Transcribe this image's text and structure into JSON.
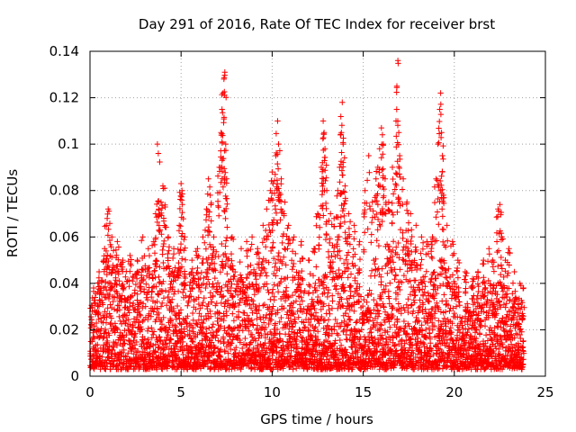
{
  "chart_data": {
    "type": "scatter",
    "title": "Day 291 of 2016, Rate Of TEC Index for receiver brst",
    "xlabel": "GPS time / hours",
    "ylabel": "ROTI / TECUs",
    "xlim": [
      0,
      25
    ],
    "ylim": [
      0,
      0.14
    ],
    "x_ticks": [
      0,
      5,
      10,
      15,
      20,
      25
    ],
    "x_tick_labels": [
      "0",
      "5",
      "10",
      "15",
      "20",
      "25"
    ],
    "y_ticks": [
      0,
      0.02,
      0.04,
      0.06,
      0.08,
      0.1,
      0.12,
      0.14
    ],
    "y_tick_labels": [
      "0",
      "0.02",
      "0.04",
      "0.06",
      "0.08",
      "0.1",
      "0.12",
      "0.14"
    ],
    "grid": true,
    "marker": "+",
    "series": [
      {
        "name": "ROTI",
        "color": "#ff0000",
        "description": "Dense point cloud mostly between 0.005 and 0.04 TECU over 0–23.8 h, with spikes listed below",
        "points": [
          [
            0.2,
            0.038
          ],
          [
            0.5,
            0.045
          ],
          [
            0.8,
            0.055
          ],
          [
            0.9,
            0.065
          ],
          [
            1.0,
            0.072
          ],
          [
            1.2,
            0.06
          ],
          [
            1.5,
            0.058
          ],
          [
            1.8,
            0.05
          ],
          [
            2.2,
            0.052
          ],
          [
            2.6,
            0.05
          ],
          [
            2.9,
            0.06
          ],
          [
            3.2,
            0.055
          ],
          [
            3.5,
            0.058
          ],
          [
            3.7,
            0.1
          ],
          [
            3.75,
            0.096
          ],
          [
            3.6,
            0.07
          ],
          [
            3.9,
            0.075
          ],
          [
            4.0,
            0.082
          ],
          [
            4.1,
            0.081
          ],
          [
            4.3,
            0.06
          ],
          [
            4.6,
            0.055
          ],
          [
            4.9,
            0.065
          ],
          [
            5.0,
            0.083
          ],
          [
            5.05,
            0.08
          ],
          [
            5.2,
            0.06
          ],
          [
            5.6,
            0.05
          ],
          [
            5.9,
            0.055
          ],
          [
            6.2,
            0.06
          ],
          [
            6.4,
            0.072
          ],
          [
            6.5,
            0.085
          ],
          [
            6.6,
            0.078
          ],
          [
            6.8,
            0.06
          ],
          [
            7.1,
            0.09
          ],
          [
            7.2,
            0.105
          ],
          [
            7.25,
            0.115
          ],
          [
            7.3,
            0.122
          ],
          [
            7.35,
            0.128
          ],
          [
            7.4,
            0.131
          ],
          [
            7.45,
            0.1
          ],
          [
            7.5,
            0.085
          ],
          [
            7.8,
            0.06
          ],
          [
            8.3,
            0.055
          ],
          [
            8.6,
            0.058
          ],
          [
            8.9,
            0.06
          ],
          [
            9.2,
            0.055
          ],
          [
            9.5,
            0.065
          ],
          [
            9.7,
            0.072
          ],
          [
            9.9,
            0.08
          ],
          [
            10.0,
            0.088
          ],
          [
            10.05,
            0.083
          ],
          [
            10.2,
            0.095
          ],
          [
            10.3,
            0.11
          ],
          [
            10.35,
            0.1
          ],
          [
            10.5,
            0.085
          ],
          [
            10.7,
            0.075
          ],
          [
            10.9,
            0.065
          ],
          [
            11.2,
            0.06
          ],
          [
            11.6,
            0.058
          ],
          [
            12.0,
            0.05
          ],
          [
            12.3,
            0.055
          ],
          [
            12.5,
            0.07
          ],
          [
            12.7,
            0.09
          ],
          [
            12.8,
            0.11
          ],
          [
            12.85,
            0.105
          ],
          [
            12.9,
            0.098
          ],
          [
            13.0,
            0.08
          ],
          [
            13.2,
            0.07
          ],
          [
            13.4,
            0.068
          ],
          [
            13.6,
            0.08
          ],
          [
            13.7,
            0.09
          ],
          [
            13.8,
            0.105
          ],
          [
            13.85,
            0.118
          ],
          [
            13.9,
            0.1
          ],
          [
            14.0,
            0.082
          ],
          [
            14.2,
            0.07
          ],
          [
            14.5,
            0.065
          ],
          [
            14.8,
            0.058
          ],
          [
            15.1,
            0.08
          ],
          [
            15.3,
            0.095
          ],
          [
            15.5,
            0.075
          ],
          [
            15.7,
            0.085
          ],
          [
            15.8,
            0.09
          ],
          [
            15.9,
            0.098
          ],
          [
            16.0,
            0.107
          ],
          [
            16.05,
            0.104
          ],
          [
            16.1,
            0.1
          ],
          [
            16.2,
            0.085
          ],
          [
            16.4,
            0.075
          ],
          [
            16.6,
            0.09
          ],
          [
            16.8,
            0.11
          ],
          [
            16.85,
            0.125
          ],
          [
            16.9,
            0.136
          ],
          [
            16.95,
            0.105
          ],
          [
            17.0,
            0.095
          ],
          [
            17.2,
            0.085
          ],
          [
            17.4,
            0.075
          ],
          [
            17.6,
            0.07
          ],
          [
            17.9,
            0.065
          ],
          [
            18.2,
            0.06
          ],
          [
            18.5,
            0.058
          ],
          [
            18.8,
            0.06
          ],
          [
            19.0,
            0.085
          ],
          [
            19.1,
            0.1
          ],
          [
            19.2,
            0.115
          ],
          [
            19.25,
            0.122
          ],
          [
            19.3,
            0.105
          ],
          [
            19.35,
            0.095
          ],
          [
            19.4,
            0.078
          ],
          [
            19.6,
            0.065
          ],
          [
            19.9,
            0.058
          ],
          [
            20.2,
            0.05
          ],
          [
            20.6,
            0.045
          ],
          [
            21.0,
            0.042
          ],
          [
            21.3,
            0.045
          ],
          [
            21.6,
            0.05
          ],
          [
            21.9,
            0.055
          ],
          [
            22.1,
            0.05
          ],
          [
            22.4,
            0.072
          ],
          [
            22.5,
            0.074
          ],
          [
            22.6,
            0.06
          ],
          [
            22.8,
            0.05
          ],
          [
            23.0,
            0.055
          ],
          [
            23.3,
            0.045
          ],
          [
            23.6,
            0.04
          ],
          [
            23.8,
            0.038
          ]
        ]
      }
    ],
    "envelope": [
      [
        0.0,
        0.03
      ],
      [
        0.5,
        0.04
      ],
      [
        1.0,
        0.052
      ],
      [
        1.5,
        0.048
      ],
      [
        2.0,
        0.045
      ],
      [
        2.5,
        0.046
      ],
      [
        3.0,
        0.048
      ],
      [
        3.5,
        0.05
      ],
      [
        4.0,
        0.052
      ],
      [
        4.5,
        0.045
      ],
      [
        5.0,
        0.05
      ],
      [
        5.5,
        0.042
      ],
      [
        6.0,
        0.045
      ],
      [
        6.5,
        0.05
      ],
      [
        7.0,
        0.055
      ],
      [
        7.5,
        0.058
      ],
      [
        8.0,
        0.045
      ],
      [
        8.5,
        0.042
      ],
      [
        9.0,
        0.048
      ],
      [
        9.5,
        0.05
      ],
      [
        10.0,
        0.055
      ],
      [
        10.5,
        0.052
      ],
      [
        11.0,
        0.05
      ],
      [
        11.5,
        0.046
      ],
      [
        12.0,
        0.03
      ],
      [
        12.5,
        0.04
      ],
      [
        13.0,
        0.05
      ],
      [
        13.5,
        0.055
      ],
      [
        14.0,
        0.055
      ],
      [
        14.5,
        0.048
      ],
      [
        15.0,
        0.03
      ],
      [
        15.5,
        0.05
      ],
      [
        16.0,
        0.058
      ],
      [
        16.5,
        0.058
      ],
      [
        17.0,
        0.06
      ],
      [
        17.5,
        0.055
      ],
      [
        18.0,
        0.048
      ],
      [
        18.5,
        0.042
      ],
      [
        19.0,
        0.05
      ],
      [
        19.5,
        0.052
      ],
      [
        20.0,
        0.04
      ],
      [
        20.5,
        0.03
      ],
      [
        21.0,
        0.035
      ],
      [
        21.5,
        0.04
      ],
      [
        22.0,
        0.038
      ],
      [
        22.5,
        0.042
      ],
      [
        23.0,
        0.035
      ],
      [
        23.5,
        0.032
      ],
      [
        23.8,
        0.03
      ]
    ],
    "x_extent": [
      0.0,
      23.8
    ]
  }
}
